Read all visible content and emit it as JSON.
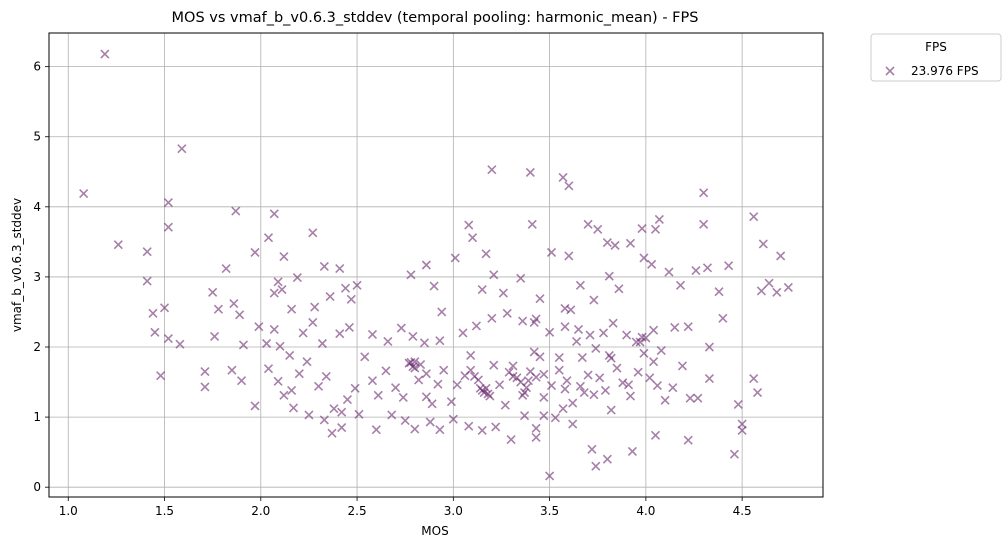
{
  "chart_data": {
    "type": "scatter",
    "title": "MOS vs vmaf_b_v0.6.3_stddev (temporal pooling: harmonic_mean) - FPS",
    "xlabel": "MOS",
    "ylabel": "vmaf_b_v0.6.3_stddev",
    "xlim": [
      0.9,
      4.92
    ],
    "ylim": [
      -0.14,
      6.48
    ],
    "xticks": [
      1.0,
      1.5,
      2.0,
      2.5,
      3.0,
      3.5,
      4.0,
      4.5
    ],
    "xtick_labels": [
      "1.0",
      "1.5",
      "2.0",
      "2.5",
      "3.0",
      "3.5",
      "4.0",
      "4.5"
    ],
    "yticks": [
      0,
      1,
      2,
      3,
      4,
      5,
      6
    ],
    "ytick_labels": [
      "0",
      "1",
      "2",
      "3",
      "4",
      "5",
      "6"
    ],
    "grid": true,
    "legend": {
      "title": "FPS",
      "placement": "outside-top-right"
    },
    "series": [
      {
        "name": "23.976 FPS",
        "color": "#6a2c70",
        "marker": "x",
        "points": [
          [
            1.19,
            6.18
          ],
          [
            1.59,
            4.83
          ],
          [
            1.08,
            4.19
          ],
          [
            1.52,
            4.06
          ],
          [
            1.87,
            3.94
          ],
          [
            3.2,
            4.53
          ],
          [
            3.4,
            4.49
          ],
          [
            3.57,
            4.42
          ],
          [
            3.6,
            4.3
          ],
          [
            4.3,
            4.2
          ],
          [
            4.56,
            3.86
          ],
          [
            1.26,
            3.46
          ],
          [
            1.41,
            3.36
          ],
          [
            1.52,
            3.71
          ],
          [
            2.07,
            3.9
          ],
          [
            2.04,
            3.56
          ],
          [
            2.27,
            3.63
          ],
          [
            2.33,
            3.15
          ],
          [
            2.12,
            3.29
          ],
          [
            1.97,
            3.35
          ],
          [
            1.82,
            3.12
          ],
          [
            3.08,
            3.74
          ],
          [
            3.1,
            3.56
          ],
          [
            3.17,
            3.33
          ],
          [
            3.41,
            3.75
          ],
          [
            3.6,
            3.3
          ],
          [
            3.7,
            3.75
          ],
          [
            3.75,
            3.68
          ],
          [
            3.8,
            3.49
          ],
          [
            3.84,
            3.45
          ],
          [
            3.98,
            3.69
          ],
          [
            4.07,
            3.82
          ],
          [
            4.05,
            3.68
          ],
          [
            4.3,
            3.75
          ],
          [
            4.61,
            3.47
          ],
          [
            4.7,
            3.3
          ],
          [
            4.43,
            3.16
          ],
          [
            1.41,
            2.94
          ],
          [
            1.44,
            2.48
          ],
          [
            1.5,
            2.56
          ],
          [
            1.75,
            2.78
          ],
          [
            1.78,
            2.54
          ],
          [
            1.86,
            2.62
          ],
          [
            1.89,
            2.46
          ],
          [
            2.07,
            2.77
          ],
          [
            2.09,
            2.93
          ],
          [
            2.11,
            2.82
          ],
          [
            2.16,
            2.54
          ],
          [
            2.19,
            2.99
          ],
          [
            2.28,
            2.57
          ],
          [
            2.36,
            2.72
          ],
          [
            2.41,
            3.12
          ],
          [
            2.44,
            2.84
          ],
          [
            2.5,
            2.88
          ],
          [
            2.47,
            2.68
          ],
          [
            2.78,
            3.03
          ],
          [
            2.86,
            3.17
          ],
          [
            2.9,
            2.87
          ],
          [
            2.94,
            2.5
          ],
          [
            3.01,
            3.27
          ],
          [
            3.15,
            2.82
          ],
          [
            3.21,
            3.03
          ],
          [
            3.26,
            2.77
          ],
          [
            3.35,
            2.98
          ],
          [
            3.45,
            2.69
          ],
          [
            3.51,
            3.35
          ],
          [
            3.58,
            2.55
          ],
          [
            3.66,
            2.88
          ],
          [
            3.73,
            2.67
          ],
          [
            3.81,
            3.01
          ],
          [
            3.86,
            2.83
          ],
          [
            3.92,
            3.48
          ],
          [
            3.99,
            3.27
          ],
          [
            4.03,
            3.18
          ],
          [
            4.12,
            3.07
          ],
          [
            4.18,
            2.88
          ],
          [
            4.26,
            3.09
          ],
          [
            4.32,
            3.13
          ],
          [
            4.38,
            2.79
          ],
          [
            4.6,
            2.8
          ],
          [
            4.64,
            2.91
          ],
          [
            4.68,
            2.78
          ],
          [
            4.74,
            2.85
          ],
          [
            1.45,
            2.21
          ],
          [
            1.52,
            2.12
          ],
          [
            1.58,
            2.04
          ],
          [
            1.76,
            2.15
          ],
          [
            1.91,
            2.03
          ],
          [
            1.99,
            2.29
          ],
          [
            2.03,
            2.05
          ],
          [
            2.07,
            2.25
          ],
          [
            2.1,
            2.01
          ],
          [
            2.15,
            1.88
          ],
          [
            2.22,
            2.2
          ],
          [
            2.27,
            2.35
          ],
          [
            2.32,
            2.05
          ],
          [
            2.41,
            2.19
          ],
          [
            2.46,
            2.28
          ],
          [
            2.58,
            2.18
          ],
          [
            2.66,
            2.08
          ],
          [
            2.73,
            2.27
          ],
          [
            2.79,
            2.15
          ],
          [
            2.85,
            2.06
          ],
          [
            2.93,
            2.09
          ],
          [
            3.05,
            2.2
          ],
          [
            3.12,
            2.3
          ],
          [
            3.2,
            2.41
          ],
          [
            3.28,
            2.48
          ],
          [
            3.36,
            2.37
          ],
          [
            3.42,
            2.35
          ],
          [
            3.5,
            2.21
          ],
          [
            3.58,
            2.29
          ],
          [
            3.65,
            2.25
          ],
          [
            3.71,
            2.17
          ],
          [
            3.78,
            2.2
          ],
          [
            3.83,
            2.34
          ],
          [
            3.9,
            2.17
          ],
          [
            3.97,
            2.07
          ],
          [
            4.04,
            2.24
          ],
          [
            4.15,
            2.28
          ],
          [
            4.22,
            2.29
          ],
          [
            4.33,
            2.0
          ],
          [
            4.4,
            2.41
          ],
          [
            1.48,
            1.59
          ],
          [
            1.71,
            1.65
          ],
          [
            1.71,
            1.43
          ],
          [
            1.85,
            1.67
          ],
          [
            1.9,
            1.52
          ],
          [
            1.97,
            1.16
          ],
          [
            2.04,
            1.69
          ],
          [
            2.09,
            1.51
          ],
          [
            2.12,
            1.31
          ],
          [
            2.16,
            1.38
          ],
          [
            2.2,
            1.62
          ],
          [
            2.24,
            1.79
          ],
          [
            2.3,
            1.44
          ],
          [
            2.34,
            1.58
          ],
          [
            2.38,
            1.12
          ],
          [
            2.42,
            1.07
          ],
          [
            2.45,
            1.25
          ],
          [
            2.49,
            1.41
          ],
          [
            2.54,
            1.86
          ],
          [
            2.58,
            1.52
          ],
          [
            2.61,
            1.31
          ],
          [
            2.65,
            1.66
          ],
          [
            2.7,
            1.42
          ],
          [
            2.74,
            1.28
          ],
          [
            2.77,
            1.77
          ],
          [
            2.79,
            1.72
          ],
          [
            2.8,
            1.79
          ],
          [
            2.82,
            1.53
          ],
          [
            2.86,
            1.29
          ],
          [
            2.89,
            1.19
          ],
          [
            2.92,
            1.47
          ],
          [
            2.95,
            1.67
          ],
          [
            2.99,
            1.22
          ],
          [
            3.02,
            1.46
          ],
          [
            3.06,
            1.59
          ],
          [
            3.09,
            1.67
          ],
          [
            3.11,
            1.58
          ],
          [
            3.14,
            1.41
          ],
          [
            3.16,
            1.35
          ],
          [
            3.18,
            1.33
          ],
          [
            3.21,
            1.74
          ],
          [
            3.24,
            1.46
          ],
          [
            3.27,
            1.17
          ],
          [
            3.29,
            1.64
          ],
          [
            3.31,
            1.58
          ],
          [
            3.33,
            1.56
          ],
          [
            3.36,
            1.31
          ],
          [
            3.38,
            1.42
          ],
          [
            3.4,
            1.65
          ],
          [
            3.43,
            1.57
          ],
          [
            3.47,
            1.28
          ],
          [
            3.51,
            1.45
          ],
          [
            3.55,
            1.67
          ],
          [
            3.59,
            1.52
          ],
          [
            3.62,
            1.2
          ],
          [
            3.66,
            1.44
          ],
          [
            3.7,
            1.6
          ],
          [
            3.73,
            1.32
          ],
          [
            3.76,
            1.56
          ],
          [
            3.79,
            1.38
          ],
          [
            3.82,
            1.84
          ],
          [
            3.85,
            1.7
          ],
          [
            3.88,
            1.49
          ],
          [
            3.92,
            1.3
          ],
          [
            3.96,
            1.64
          ],
          [
            3.99,
            1.91
          ],
          [
            4.02,
            1.56
          ],
          [
            4.06,
            1.45
          ],
          [
            4.1,
            1.24
          ],
          [
            4.14,
            1.42
          ],
          [
            4.19,
            1.73
          ],
          [
            4.23,
            1.27
          ],
          [
            4.27,
            1.27
          ],
          [
            4.33,
            1.55
          ],
          [
            4.48,
            1.18
          ],
          [
            4.56,
            1.55
          ],
          [
            4.58,
            1.35
          ],
          [
            2.17,
            1.13
          ],
          [
            2.25,
            1.03
          ],
          [
            2.33,
            0.96
          ],
          [
            2.37,
            0.77
          ],
          [
            2.42,
            0.85
          ],
          [
            2.51,
            1.04
          ],
          [
            2.6,
            0.82
          ],
          [
            2.68,
            1.03
          ],
          [
            2.75,
            0.95
          ],
          [
            2.8,
            0.83
          ],
          [
            2.88,
            0.93
          ],
          [
            2.93,
            0.82
          ],
          [
            3.0,
            0.97
          ],
          [
            3.08,
            0.87
          ],
          [
            3.15,
            0.81
          ],
          [
            3.22,
            0.86
          ],
          [
            3.3,
            0.68
          ],
          [
            3.37,
            1.02
          ],
          [
            3.43,
            0.71
          ],
          [
            3.5,
            0.16
          ],
          [
            3.53,
            0.99
          ],
          [
            3.62,
            0.9
          ],
          [
            3.72,
            0.54
          ],
          [
            3.74,
            0.3
          ],
          [
            3.8,
            0.4
          ],
          [
            3.93,
            0.51
          ],
          [
            4.05,
            0.74
          ],
          [
            4.22,
            0.67
          ],
          [
            4.46,
            0.47
          ],
          [
            4.5,
            0.81
          ],
          [
            4.5,
            0.9
          ],
          [
            2.78,
            1.78
          ],
          [
            2.8,
            1.7
          ],
          [
            2.83,
            1.75
          ],
          [
            2.86,
            1.62
          ],
          [
            3.09,
            1.88
          ],
          [
            3.13,
            1.53
          ],
          [
            3.15,
            1.38
          ],
          [
            3.17,
            1.41
          ],
          [
            3.19,
            1.3
          ],
          [
            3.31,
            1.73
          ],
          [
            3.35,
            1.5
          ],
          [
            3.37,
            1.35
          ],
          [
            3.39,
            1.52
          ],
          [
            3.42,
            1.93
          ],
          [
            3.43,
            2.4
          ],
          [
            3.45,
            1.86
          ],
          [
            3.47,
            1.61
          ],
          [
            3.55,
            1.85
          ],
          [
            3.58,
            1.4
          ],
          [
            3.61,
            2.53
          ],
          [
            3.64,
            2.08
          ],
          [
            3.67,
            1.85
          ],
          [
            3.68,
            1.35
          ],
          [
            3.74,
            1.98
          ],
          [
            3.81,
            1.88
          ],
          [
            3.82,
            1.1
          ],
          [
            3.91,
            1.46
          ],
          [
            3.95,
            2.07
          ],
          [
            3.98,
            2.14
          ],
          [
            4.0,
            2.13
          ],
          [
            4.04,
            1.79
          ],
          [
            4.08,
            1.95
          ],
          [
            3.57,
            1.12
          ],
          [
            3.43,
            0.84
          ],
          [
            3.47,
            1.02
          ]
        ]
      }
    ]
  }
}
